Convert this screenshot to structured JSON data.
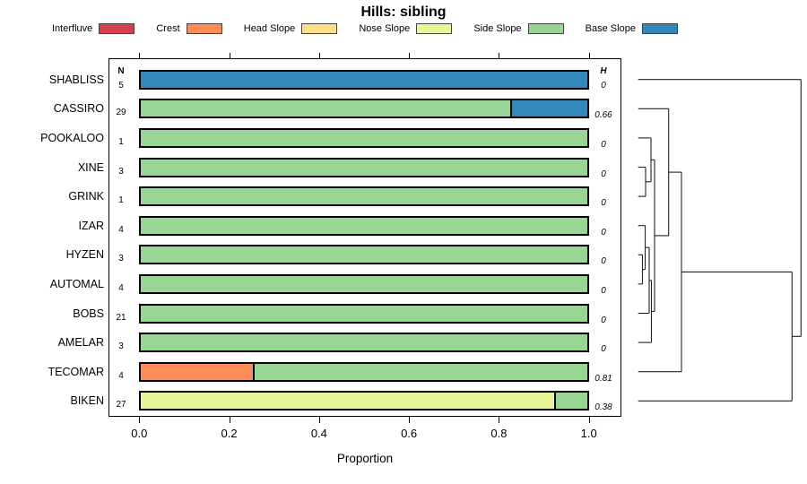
{
  "title": "Hills: sibling",
  "legend": {
    "items": [
      {
        "label": "Interfluve",
        "color": "#D53E4F"
      },
      {
        "label": "Crest",
        "color": "#FC8D59"
      },
      {
        "label": "Head Slope",
        "color": "#FEE08B"
      },
      {
        "label": "Nose Slope",
        "color": "#E6F598"
      },
      {
        "label": "Side Slope",
        "color": "#99D594"
      },
      {
        "label": "Base Slope",
        "color": "#3288BD"
      }
    ]
  },
  "table": {
    "n_header": "N",
    "h_header": "H"
  },
  "axis": {
    "xlabel": "Proportion",
    "tick_labels": [
      "0.0",
      "0.2",
      "0.4",
      "0.6",
      "0.8",
      "1.0"
    ]
  },
  "chart_data": {
    "type": "bar",
    "orientation": "horizontal-stacked",
    "title": "Hills: sibling",
    "xlabel": "Proportion",
    "xlim": [
      0,
      1
    ],
    "x_ticks": [
      0.0,
      0.2,
      0.4,
      0.6,
      0.8,
      1.0
    ],
    "grid": false,
    "legend_position": "top",
    "categories": [
      "Interfluve",
      "Crest",
      "Head Slope",
      "Nose Slope",
      "Side Slope",
      "Base Slope"
    ],
    "palette": {
      "Interfluve": "#D53E4F",
      "Crest": "#FC8D59",
      "Head Slope": "#FEE08B",
      "Nose Slope": "#E6F598",
      "Side Slope": "#99D594",
      "Base Slope": "#3288BD"
    },
    "rows": [
      {
        "label": "SHABLISS",
        "n": 5,
        "h": "0",
        "segments": [
          {
            "category": "Base Slope",
            "value": 1.0
          }
        ]
      },
      {
        "label": "CASSIRO",
        "n": 29,
        "h": "0.66",
        "segments": [
          {
            "category": "Side Slope",
            "value": 0.828
          },
          {
            "category": "Base Slope",
            "value": 0.172
          }
        ]
      },
      {
        "label": "POOKALOO",
        "n": 1,
        "h": "0",
        "segments": [
          {
            "category": "Side Slope",
            "value": 1.0
          }
        ]
      },
      {
        "label": "XINE",
        "n": 3,
        "h": "0",
        "segments": [
          {
            "category": "Side Slope",
            "value": 1.0
          }
        ]
      },
      {
        "label": "GRINK",
        "n": 1,
        "h": "0",
        "segments": [
          {
            "category": "Side Slope",
            "value": 1.0
          }
        ]
      },
      {
        "label": "IZAR",
        "n": 4,
        "h": "0",
        "segments": [
          {
            "category": "Side Slope",
            "value": 1.0
          }
        ]
      },
      {
        "label": "HYZEN",
        "n": 3,
        "h": "0",
        "segments": [
          {
            "category": "Side Slope",
            "value": 1.0
          }
        ]
      },
      {
        "label": "AUTOMAL",
        "n": 4,
        "h": "0",
        "segments": [
          {
            "category": "Side Slope",
            "value": 1.0
          }
        ]
      },
      {
        "label": "BOBS",
        "n": 21,
        "h": "0",
        "segments": [
          {
            "category": "Side Slope",
            "value": 1.0
          }
        ]
      },
      {
        "label": "AMELAR",
        "n": 3,
        "h": "0",
        "segments": [
          {
            "category": "Side Slope",
            "value": 1.0
          }
        ]
      },
      {
        "label": "TECOMAR",
        "n": 4,
        "h": "0.81",
        "segments": [
          {
            "category": "Crest",
            "value": 0.25
          },
          {
            "category": "Side Slope",
            "value": 0.75
          }
        ]
      },
      {
        "label": "BIKEN",
        "n": 27,
        "h": "0.38",
        "segments": [
          {
            "category": "Nose Slope",
            "value": 0.926
          },
          {
            "category": "Side Slope",
            "value": 0.074
          }
        ]
      }
    ]
  },
  "dendrogram": {
    "position": "right",
    "leaves_top_to_bottom": [
      "SHABLISS",
      "CASSIRO",
      "POOKALOO",
      "XINE",
      "GRINK",
      "IZAR",
      "HYZEN",
      "AUTOMAL",
      "BOBS",
      "AMELAR",
      "TECOMAR",
      "BIKEN"
    ],
    "tree": {
      "h": 1.0,
      "children": [
        {
          "leaf": "SHABLISS"
        },
        {
          "h": 0.9449,
          "children": [
            {
              "h": 0.266,
              "children": [
                {
                  "h": 0.1872,
                  "children": [
                    {
                      "leaf": "CASSIRO"
                    },
                    {
                      "h": 0.1008,
                      "children": [
                        {
                          "h": 0.0787,
                          "children": [
                            {
                              "leaf": "POOKALOO"
                            },
                            {
                              "h": 0.0457,
                              "children": [
                                {
                                  "leaf": "XINE"
                                },
                                {
                                  "leaf": "GRINK"
                                }
                              ]
                            }
                          ]
                        },
                        {
                          "h": 0.0815,
                          "children": [
                            {
                              "h": 0.0677,
                              "children": [
                                {
                                  "h": 0.043,
                                  "children": [
                                    {
                                      "leaf": "IZAR"
                                    },
                                    {
                                      "h": 0.0264,
                                      "children": [
                                        {
                                          "leaf": "HYZEN"
                                        },
                                        {
                                          "leaf": "AUTOMAL"
                                        }
                                      ]
                                    }
                                  ]
                                },
                                {
                                  "leaf": "BOBS"
                                }
                              ]
                            },
                            {
                              "leaf": "AMELAR"
                            }
                          ]
                        }
                      ]
                    }
                  ]
                },
                {
                  "leaf": "TECOMAR"
                }
              ]
            },
            {
              "leaf": "BIKEN"
            }
          ]
        }
      ]
    }
  }
}
